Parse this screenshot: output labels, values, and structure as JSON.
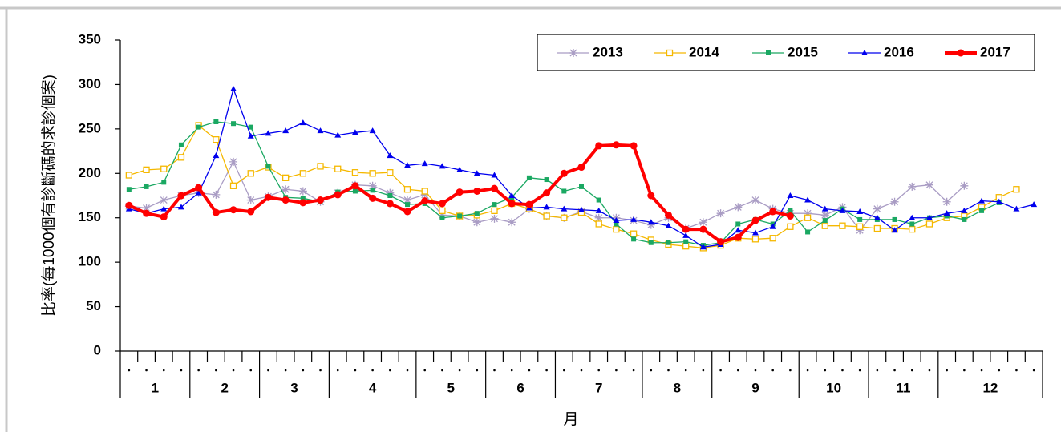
{
  "chart_data": {
    "type": "line",
    "y_label": "比率(每1000個有診斷碼的求診個案)",
    "x_label": "月",
    "categories": [
      "1",
      "1",
      "1",
      "1",
      "2",
      "2",
      "2",
      "2",
      "3",
      "3",
      "3",
      "3",
      "4",
      "4",
      "4",
      "4",
      "4",
      "5",
      "5",
      "5",
      "5",
      "6",
      "6",
      "6",
      "6",
      "7",
      "7",
      "7",
      "7",
      "7",
      "8",
      "8",
      "8",
      "8",
      "9",
      "9",
      "9",
      "9",
      "9",
      "10",
      "10",
      "10",
      "10",
      "11",
      "11",
      "11",
      "11",
      "12",
      "12",
      "12",
      "12",
      "12",
      "12"
    ],
    "ylim": [
      0,
      350
    ],
    "yticks": [
      0,
      50,
      100,
      150,
      200,
      250,
      300,
      350
    ],
    "grid": false,
    "legend": "top-right",
    "series": [
      {
        "name": "2013",
        "color": "#a99cc4",
        "marker": "star",
        "values": [
          163,
          161,
          170,
          175,
          178,
          176,
          213,
          170,
          174,
          182,
          180,
          168,
          178,
          187,
          186,
          178,
          170,
          176,
          153,
          152,
          145,
          149,
          145,
          160,
          152,
          150,
          157,
          150,
          150,
          147,
          142,
          150,
          138,
          145,
          155,
          162,
          170,
          160,
          155,
          155,
          153,
          162,
          136,
          160,
          168,
          185,
          187,
          168,
          186,
          null,
          null,
          null,
          null
        ]
      },
      {
        "name": "2014",
        "color": "#f5b800",
        "marker": "square-open",
        "values": [
          198,
          204,
          205,
          218,
          254,
          238,
          186,
          200,
          207,
          195,
          200,
          208,
          205,
          201,
          200,
          201,
          182,
          180,
          158,
          152,
          153,
          158,
          166,
          160,
          152,
          150,
          156,
          143,
          137,
          132,
          125,
          120,
          118,
          116,
          119,
          127,
          126,
          127,
          140,
          150,
          141,
          141,
          140,
          138,
          138,
          137,
          143,
          150,
          152,
          162,
          173,
          182,
          null
        ]
      },
      {
        "name": "2015",
        "color": "#1aa862",
        "marker": "square",
        "values": [
          182,
          185,
          190,
          232,
          252,
          258,
          256,
          252,
          208,
          173,
          172,
          168,
          179,
          180,
          181,
          175,
          165,
          166,
          150,
          152,
          155,
          165,
          173,
          195,
          193,
          180,
          185,
          170,
          143,
          126,
          122,
          122,
          123,
          119,
          122,
          143,
          148,
          143,
          158,
          134,
          147,
          160,
          148,
          148,
          148,
          143,
          150,
          152,
          148,
          158,
          167,
          null,
          null
        ]
      },
      {
        "name": "2016",
        "color": "#0000ee",
        "marker": "triangle",
        "values": [
          160,
          155,
          160,
          162,
          178,
          220,
          295,
          242,
          245,
          248,
          257,
          248,
          243,
          246,
          248,
          220,
          209,
          211,
          208,
          204,
          200,
          198,
          175,
          161,
          162,
          160,
          159,
          158,
          147,
          148,
          145,
          141,
          130,
          117,
          120,
          136,
          133,
          140,
          175,
          170,
          160,
          158,
          157,
          150,
          136,
          150,
          150,
          155,
          158,
          169,
          168,
          160,
          165
        ]
      },
      {
        "name": "2017",
        "color": "#ff0000",
        "marker": "circle",
        "values": [
          164,
          155,
          151,
          175,
          184,
          156,
          159,
          157,
          173,
          170,
          167,
          170,
          176,
          186,
          172,
          166,
          157,
          169,
          166,
          179,
          180,
          183,
          166,
          165,
          178,
          200,
          207,
          231,
          232,
          231,
          175,
          153,
          137,
          137,
          123,
          128,
          147,
          157,
          152,
          null,
          null,
          null,
          null,
          null,
          null,
          null,
          null,
          null,
          null,
          null,
          null,
          null,
          null
        ]
      }
    ]
  }
}
